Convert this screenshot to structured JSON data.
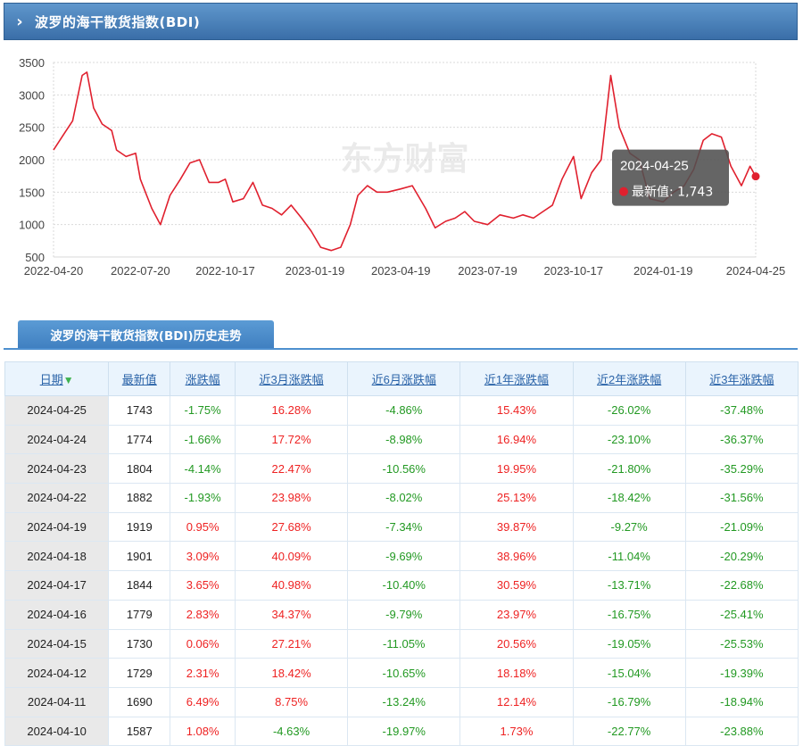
{
  "header": {
    "chevron": "›",
    "title": "波罗的海干散货指数(BDI)"
  },
  "chart_data": {
    "type": "line",
    "title": "",
    "xlabel": "",
    "ylabel": "",
    "ylim": [
      500,
      3500
    ],
    "yticks": [
      500,
      1000,
      1500,
      2000,
      2500,
      3000,
      3500
    ],
    "xtick_labels": [
      "2022-04-20",
      "2022-07-20",
      "2022-10-17",
      "2023-01-19",
      "2023-04-19",
      "2023-07-19",
      "2023-10-17",
      "2024-01-19",
      "2024-04-25"
    ],
    "watermark": "东方财富",
    "series": [
      {
        "color": "#e0202e",
        "x": [
          "2022-04-20",
          "2022-05-01",
          "2022-05-10",
          "2022-05-20",
          "2022-05-25",
          "2022-06-01",
          "2022-06-10",
          "2022-06-20",
          "2022-06-25",
          "2022-07-05",
          "2022-07-15",
          "2022-07-20",
          "2022-08-01",
          "2022-08-10",
          "2022-08-20",
          "2022-08-31",
          "2022-09-10",
          "2022-09-20",
          "2022-09-30",
          "2022-10-10",
          "2022-10-17",
          "2022-10-25",
          "2022-11-05",
          "2022-11-15",
          "2022-11-25",
          "2022-12-05",
          "2022-12-15",
          "2022-12-25",
          "2023-01-05",
          "2023-01-15",
          "2023-01-25",
          "2023-02-05",
          "2023-02-15",
          "2023-02-25",
          "2023-03-05",
          "2023-03-15",
          "2023-03-25",
          "2023-04-05",
          "2023-04-19",
          "2023-05-01",
          "2023-05-15",
          "2023-05-25",
          "2023-06-05",
          "2023-06-15",
          "2023-06-25",
          "2023-07-05",
          "2023-07-19",
          "2023-08-01",
          "2023-08-15",
          "2023-08-25",
          "2023-09-05",
          "2023-09-15",
          "2023-09-25",
          "2023-10-05",
          "2023-10-17",
          "2023-10-25",
          "2023-11-05",
          "2023-11-15",
          "2023-11-25",
          "2023-12-04",
          "2023-12-15",
          "2023-12-25",
          "2024-01-05",
          "2024-01-19",
          "2024-01-30",
          "2024-02-10",
          "2024-02-20",
          "2024-03-01",
          "2024-03-10",
          "2024-03-20",
          "2024-03-30",
          "2024-04-10",
          "2024-04-19",
          "2024-04-25"
        ],
        "values": [
          2150,
          2400,
          2600,
          3300,
          3350,
          2800,
          2550,
          2450,
          2150,
          2050,
          2100,
          1700,
          1250,
          1000,
          1450,
          1700,
          1950,
          2000,
          1650,
          1650,
          1700,
          1350,
          1400,
          1650,
          1300,
          1250,
          1150,
          1300,
          1100,
          900,
          650,
          600,
          650,
          1000,
          1450,
          1600,
          1500,
          1500,
          1550,
          1600,
          1250,
          950,
          1050,
          1100,
          1200,
          1050,
          1000,
          1150,
          1100,
          1150,
          1100,
          1200,
          1300,
          1700,
          2050,
          1400,
          1800,
          2000,
          3300,
          2500,
          2100,
          2000,
          1400,
          1350,
          1500,
          1600,
          1850,
          2300,
          2400,
          2350,
          1900,
          1600,
          1900,
          1743
        ]
      }
    ],
    "tooltip": {
      "date": "2024-04-25",
      "label": "最新值: 1,743"
    }
  },
  "tab": {
    "label": "波罗的海干散货指数(BDI)历史走势"
  },
  "table": {
    "headers": [
      "日期",
      "最新值",
      "涨跌幅",
      "近3月涨跌幅",
      "近6月涨跌幅",
      "近1年涨跌幅",
      "近2年涨跌幅",
      "近3年涨跌幅"
    ],
    "rows": [
      [
        "2024-04-25",
        "1743",
        "-1.75%",
        "16.28%",
        "-4.86%",
        "15.43%",
        "-26.02%",
        "-37.48%"
      ],
      [
        "2024-04-24",
        "1774",
        "-1.66%",
        "17.72%",
        "-8.98%",
        "16.94%",
        "-23.10%",
        "-36.37%"
      ],
      [
        "2024-04-23",
        "1804",
        "-4.14%",
        "22.47%",
        "-10.56%",
        "19.95%",
        "-21.80%",
        "-35.29%"
      ],
      [
        "2024-04-22",
        "1882",
        "-1.93%",
        "23.98%",
        "-8.02%",
        "25.13%",
        "-18.42%",
        "-31.56%"
      ],
      [
        "2024-04-19",
        "1919",
        "0.95%",
        "27.68%",
        "-7.34%",
        "39.87%",
        "-9.27%",
        "-21.09%"
      ],
      [
        "2024-04-18",
        "1901",
        "3.09%",
        "40.09%",
        "-9.69%",
        "38.96%",
        "-11.04%",
        "-20.29%"
      ],
      [
        "2024-04-17",
        "1844",
        "3.65%",
        "40.98%",
        "-10.40%",
        "30.59%",
        "-13.71%",
        "-22.68%"
      ],
      [
        "2024-04-16",
        "1779",
        "2.83%",
        "34.37%",
        "-9.79%",
        "23.97%",
        "-16.75%",
        "-25.41%"
      ],
      [
        "2024-04-15",
        "1730",
        "0.06%",
        "27.21%",
        "-11.05%",
        "20.56%",
        "-19.05%",
        "-25.53%"
      ],
      [
        "2024-04-12",
        "1729",
        "2.31%",
        "18.42%",
        "-10.65%",
        "18.18%",
        "-15.04%",
        "-19.39%"
      ],
      [
        "2024-04-11",
        "1690",
        "6.49%",
        "8.75%",
        "-13.24%",
        "12.14%",
        "-16.79%",
        "-18.94%"
      ],
      [
        "2024-04-10",
        "1587",
        "1.08%",
        "-4.63%",
        "-19.97%",
        "1.73%",
        "-22.77%",
        "-23.88%"
      ]
    ]
  }
}
